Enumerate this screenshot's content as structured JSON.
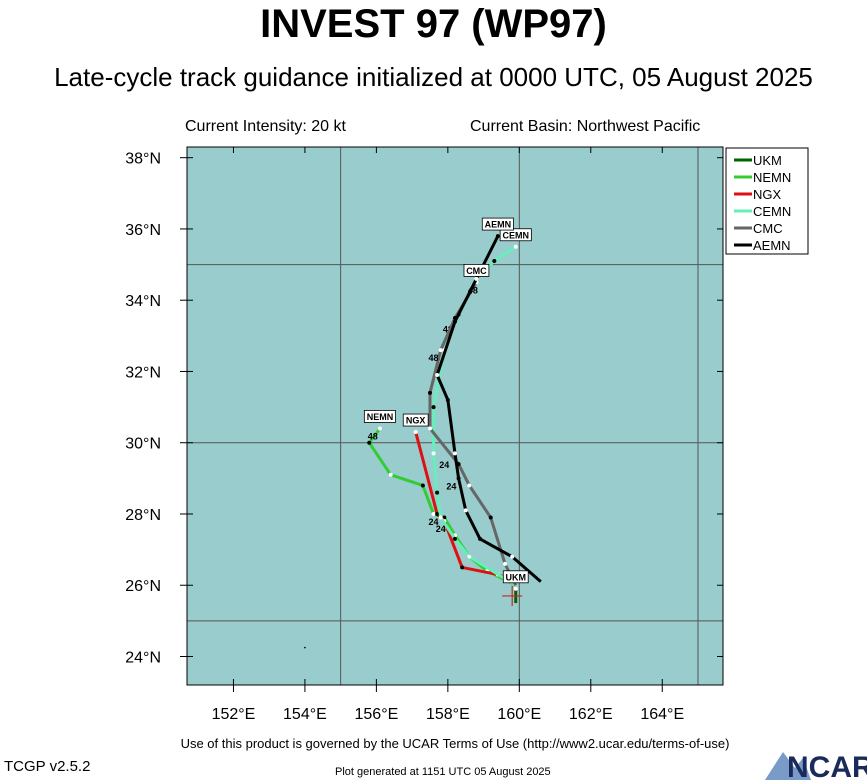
{
  "title": "INVEST 97 (WP97)",
  "subtitle": "Late-cycle track guidance initialized at 0000 UTC, 05 August 2025",
  "current_intensity": "Current Intensity: 20 kt",
  "current_basin": "Current Basin: Northwest Pacific",
  "terms": "Use of this product is governed by the UCAR Terms of Use (http://www2.ucar.edu/terms-of-use)",
  "version": "TCGP v2.5.2",
  "generated": "Plot generated at 1151 UTC   05 August 2025",
  "logo_text": "NCAR",
  "colors": {
    "ocean": "#99cccc",
    "grid": "#555555",
    "UKM": "#006400",
    "NEMN": "#33cc33",
    "NGX": "#dd1111",
    "CEMN": "#66eebb",
    "CMC": "#666666",
    "AEMN": "#000000"
  },
  "chart_data": {
    "type": "line",
    "xlim": [
      150.7,
      165.7
    ],
    "ylim": [
      23.2,
      38.3
    ],
    "x_ticks": [
      152,
      154,
      156,
      158,
      160,
      162,
      164
    ],
    "x_tick_labels": [
      "152°E",
      "154°E",
      "156°E",
      "158°E",
      "160°E",
      "162°E",
      "164°E"
    ],
    "y_ticks": [
      24,
      26,
      28,
      30,
      32,
      34,
      36,
      38
    ],
    "y_tick_labels": [
      "24°N",
      "26°N",
      "28°N",
      "30°N",
      "32°N",
      "34°N",
      "36°N",
      "38°N"
    ],
    "grid_lon": [
      155,
      160,
      165
    ],
    "grid_lat": [
      25,
      30,
      35
    ],
    "legend_position": "outside-right-top",
    "legend": [
      "UKM",
      "NEMN",
      "NGX",
      "CEMN",
      "CMC",
      "AEMN"
    ],
    "current_position": {
      "lon": 159.8,
      "lat": 25.7
    },
    "series": [
      {
        "name": "UKM",
        "points": [
          [
            159.9,
            25.5
          ],
          [
            159.9,
            25.9
          ]
        ],
        "end_label": "UKM",
        "end_label_at": [
          159.9,
          25.9
        ],
        "tau_labels": []
      },
      {
        "name": "NEMN",
        "points": [
          [
            159.9,
            26.0
          ],
          [
            159.1,
            26.4
          ],
          [
            158.6,
            26.8
          ],
          [
            158.2,
            27.4
          ],
          [
            157.9,
            27.9
          ],
          [
            157.6,
            28.0
          ],
          [
            157.3,
            28.8
          ],
          [
            156.4,
            29.1
          ],
          [
            155.8,
            30.0
          ],
          [
            156.1,
            30.4
          ]
        ],
        "end_label": "NEMN",
        "end_label_at": [
          156.1,
          30.4
        ],
        "tau_labels": [
          {
            "text": "24",
            "at": [
              157.6,
              27.8
            ]
          },
          {
            "text": "48",
            "at": [
              155.9,
              30.2
            ]
          }
        ]
      },
      {
        "name": "NGX",
        "points": [
          [
            159.9,
            26.1
          ],
          [
            159.4,
            26.3
          ],
          [
            158.4,
            26.5
          ],
          [
            157.9,
            27.8
          ],
          [
            157.7,
            28.0
          ],
          [
            157.1,
            30.3
          ]
        ],
        "end_label": "NGX",
        "end_label_at": [
          157.1,
          30.3
        ],
        "tau_labels": [
          {
            "text": "24",
            "at": [
              157.8,
              27.6
            ]
          }
        ]
      },
      {
        "name": "CEMN",
        "points": [
          [
            159.9,
            26.0
          ],
          [
            158.6,
            26.8
          ],
          [
            158.2,
            27.3
          ],
          [
            157.8,
            27.9
          ],
          [
            157.7,
            28.6
          ],
          [
            157.6,
            29.7
          ],
          [
            157.6,
            31.0
          ],
          [
            157.9,
            32.6
          ],
          [
            158.3,
            33.6
          ],
          [
            158.8,
            34.6
          ],
          [
            159.3,
            35.1
          ],
          [
            159.9,
            35.5
          ]
        ],
        "end_label": "CEMN",
        "end_label_at": [
          159.9,
          35.5
        ],
        "tau_labels": [
          {
            "text": "48",
            "at": [
              158.0,
              33.2
            ]
          }
        ]
      },
      {
        "name": "CMC",
        "points": [
          [
            159.9,
            26.0
          ],
          [
            159.6,
            26.6
          ],
          [
            159.2,
            27.9
          ],
          [
            158.6,
            28.8
          ],
          [
            158.3,
            29.4
          ],
          [
            157.5,
            30.4
          ],
          [
            157.5,
            31.4
          ],
          [
            157.8,
            32.6
          ],
          [
            158.2,
            33.5
          ],
          [
            158.8,
            34.5
          ]
        ],
        "end_label": "CMC",
        "end_label_at": [
          158.8,
          34.5
        ],
        "tau_labels": [
          {
            "text": "24",
            "at": [
              157.9,
              29.4
            ]
          },
          {
            "text": "48",
            "at": [
              157.6,
              32.4
            ]
          }
        ]
      },
      {
        "name": "AEMN",
        "points": [
          [
            160.6,
            26.1
          ],
          [
            159.8,
            26.8
          ],
          [
            158.9,
            27.3
          ],
          [
            158.5,
            28.1
          ],
          [
            158.3,
            29.0
          ],
          [
            158.2,
            29.7
          ],
          [
            158.0,
            31.2
          ],
          [
            157.7,
            31.9
          ],
          [
            158.2,
            33.4
          ],
          [
            158.8,
            34.6
          ],
          [
            159.4,
            35.8
          ]
        ],
        "end_label": "AEMN",
        "end_label_at": [
          159.4,
          35.8
        ],
        "tau_labels": [
          {
            "text": "24",
            "at": [
              158.1,
              28.8
            ]
          },
          {
            "text": "48",
            "at": [
              158.7,
              34.3
            ]
          }
        ]
      }
    ]
  }
}
